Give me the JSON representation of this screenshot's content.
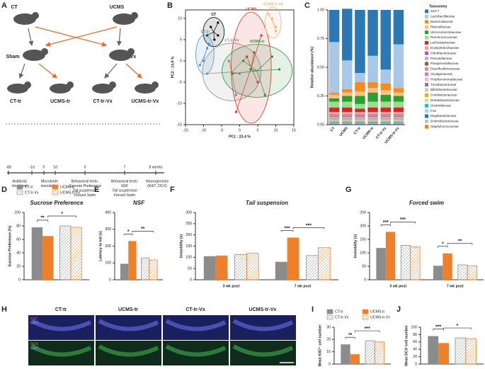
{
  "panels": [
    "A",
    "B",
    "C",
    "D",
    "E",
    "F",
    "G",
    "H",
    "I",
    "J"
  ],
  "diagram": {
    "groups": [
      "CT",
      "UCMS",
      "Sham",
      "Vx",
      "CT-tr",
      "UCMS-tr",
      "CT-tr-Vx",
      "UCMS-tr-Vx"
    ],
    "timeline": {
      "ticks": [
        "-8d",
        "-1d",
        "0",
        "1d",
        "3",
        "7",
        "8 weeks"
      ],
      "events": [
        [
          "Antibiotic",
          "treatment"
        ],
        [
          "Microbiote",
          "inoculation"
        ],
        [
          "Behavioral tests:",
          "Sucrose Preference",
          "Tail suspension",
          "Forced Swim"
        ],
        [
          "Behavioral tests:",
          "NSF",
          "Tail suspension",
          "Forced Swim"
        ],
        [
          "Neurogenesis",
          "(Ki67, DCX)"
        ]
      ]
    }
  },
  "micrographs": {
    "columns": [
      "CT-tr",
      "UCMS-tr",
      "CT-tr-Vx",
      "UCMS-tr-Vx"
    ],
    "stains": [
      [
        "Ki67",
        "DAPI"
      ],
      [
        "DCX",
        "DAPI"
      ]
    ]
  },
  "chart_data": [
    {
      "type": "scatter",
      "xlabel": "PC1 : 23.4 %",
      "ylabel": "PC2 : 14.9 %",
      "xlim": [
        -15,
        15
      ],
      "xticks": [
        -15,
        -10,
        -5,
        0,
        5,
        10,
        15
      ],
      "ylim": [
        -15,
        12
      ],
      "yticks": [
        -15,
        -10,
        -5,
        0,
        5,
        10
      ],
      "series": [
        {
          "name": "CT",
          "color": "#000000",
          "x": [
            -8,
            -6,
            -7,
            -9,
            -6
          ],
          "y": [
            8,
            9,
            5,
            6,
            6
          ]
        },
        {
          "name": "CT-tr",
          "color": "#4a90d0",
          "x": [
            -11,
            -9,
            -10,
            -8.5
          ],
          "y": [
            -1,
            3,
            0,
            4
          ]
        },
        {
          "name": "CT-tr-Vx",
          "color": "#8a8a8a",
          "x": [
            -9,
            0,
            2,
            -1,
            -3
          ],
          "y": [
            -3,
            -3,
            1,
            -8,
            0
          ]
        },
        {
          "name": "UCMS",
          "color": "#d7301f",
          "x": [
            2,
            5,
            -1,
            6,
            4
          ],
          "y": [
            1,
            -5,
            -12,
            6,
            2
          ]
        },
        {
          "name": "UCMS-tr",
          "color": "#2a8c3a",
          "x": [
            1,
            7,
            11,
            9,
            3,
            -2
          ],
          "y": [
            0,
            -8,
            -2,
            1,
            -2,
            -3
          ]
        },
        {
          "name": "UCMS-tr-Vx",
          "color": "#f2b27a",
          "x": [
            8,
            10,
            9,
            10
          ],
          "y": [
            11,
            7,
            10,
            8
          ]
        }
      ]
    },
    {
      "type": "stacked_bar",
      "ylabel": "Relative abundance (%)",
      "legend_title": "Taxonomy",
      "categories": [
        "CT",
        "UCMS",
        "CT-tr",
        "UCMS-tr",
        "CT-tr-Vx",
        "UCMS-tr-Vx"
      ],
      "ylim": [
        0,
        1
      ],
      "yticks": [
        {
          "value": 0,
          "label": "0.00"
        },
        {
          "value": 0.25,
          "label": "0.25"
        },
        {
          "value": 0.5,
          "label": "0.50"
        },
        {
          "value": 0.75,
          "label": "0.75"
        },
        {
          "value": 1,
          "label": "1.00"
        }
      ],
      "series": [
        {
          "name": "S24-7",
          "color": "#2b78b5",
          "values": [
            0.28,
            0.45,
            0.55,
            0.4,
            0.52,
            0.3
          ]
        },
        {
          "name": "Lactobacillaceae",
          "color": "#a9c8e8",
          "values": [
            0.44,
            0.25,
            0.08,
            0.23,
            0.12,
            0.38
          ]
        },
        {
          "name": "Bacteroidaceae",
          "color": "#f58b22",
          "values": [
            0.02,
            0.03,
            0.08,
            0.05,
            0.06,
            0.04
          ]
        },
        {
          "name": "Rikenellaceae",
          "color": "#fdc07e",
          "values": [
            0.03,
            0.03,
            0.04,
            0.04,
            0.04,
            0.03
          ]
        },
        {
          "name": "Verrucomicrobiaceae",
          "color": "#2ca02c",
          "values": [
            0.03,
            0.05,
            0.07,
            0.08,
            0.06,
            0.05
          ]
        },
        {
          "name": "Ruminococcaceae",
          "color": "#98df8a",
          "values": [
            0.05,
            0.05,
            0.04,
            0.05,
            0.05,
            0.05
          ]
        },
        {
          "name": "Lachnospiraceae",
          "color": "#d62728",
          "values": [
            0.04,
            0.04,
            0.03,
            0.04,
            0.04,
            0.04
          ]
        },
        {
          "name": "Erysipelotrichaceae",
          "color": "#ff9896",
          "values": [
            0.02,
            0.02,
            0.02,
            0.02,
            0.02,
            0.02
          ]
        },
        {
          "name": "Odoribacteraceae",
          "color": "#9467bd",
          "values": [
            0.006,
            0.006,
            0.006,
            0.006,
            0.006,
            0.006
          ]
        },
        {
          "name": "Prevotellaceae",
          "color": "#c5b0d5",
          "values": [
            0.006,
            0.006,
            0.006,
            0.006,
            0.006,
            0.006
          ]
        },
        {
          "name": "Paraprevotellaceae",
          "color": "#8c564b",
          "values": [
            0.006,
            0.006,
            0.006,
            0.006,
            0.006,
            0.006
          ]
        },
        {
          "name": "Desulfovibrionaceae",
          "color": "#c49c94",
          "values": [
            0.006,
            0.006,
            0.006,
            0.006,
            0.006,
            0.006
          ]
        },
        {
          "name": "Alcaligenaceae",
          "color": "#e377c2",
          "values": [
            0.006,
            0.006,
            0.006,
            0.006,
            0.006,
            0.006
          ]
        },
        {
          "name": "Porphyromonadaceae",
          "color": "#f7b6d2",
          "values": [
            0.006,
            0.006,
            0.006,
            0.006,
            0.006,
            0.006
          ]
        },
        {
          "name": "Turicibacteraceae",
          "color": "#7f7f7f",
          "values": [
            0.006,
            0.006,
            0.006,
            0.006,
            0.006,
            0.006
          ]
        },
        {
          "name": "Bifidobacteriaceae",
          "color": "#c7c7c7",
          "values": [
            0.006,
            0.006,
            0.006,
            0.006,
            0.006,
            0.006
          ]
        },
        {
          "name": "Coriobacteriaceae",
          "color": "#bcbd22",
          "values": [
            0.006,
            0.006,
            0.006,
            0.006,
            0.006,
            0.006
          ]
        },
        {
          "name": "Dehalobacteriaceae",
          "color": "#dbdb8d",
          "values": [
            0.006,
            0.006,
            0.006,
            0.006,
            0.006,
            0.006
          ]
        },
        {
          "name": "Clostridiaceae",
          "color": "#17becf",
          "values": [
            0.006,
            0.006,
            0.006,
            0.006,
            0.006,
            0.006
          ]
        },
        {
          "name": "F16",
          "color": "#9edae5",
          "values": [
            0.006,
            0.006,
            0.006,
            0.006,
            0.006,
            0.006
          ]
        },
        {
          "name": "Mogibacteriaceae",
          "color": "#1f77b4",
          "values": [
            0.006,
            0.006,
            0.006,
            0.006,
            0.006,
            0.006
          ]
        },
        {
          "name": "Enterobacteriaceae",
          "color": "#aec7e8",
          "values": [
            0.006,
            0.006,
            0.006,
            0.006,
            0.006,
            0.006
          ]
        },
        {
          "name": "Staphylococcaceae",
          "color": "#ff7f0e",
          "values": [
            0.006,
            0.006,
            0.006,
            0.006,
            0.006,
            0.006
          ]
        }
      ]
    },
    {
      "type": "bar",
      "title": "Sucrose Preference",
      "ylabel": "Sucrose Preference (%)",
      "legend": true,
      "ylim": [
        0,
        100
      ],
      "yticks": [
        0,
        20,
        40,
        60,
        80,
        100
      ],
      "series": [
        {
          "name": "CT-tr",
          "color": "#8c8c8c",
          "hatch": false,
          "values": [
            78
          ]
        },
        {
          "name": "UCMS-tr",
          "color": "#f07f2a",
          "hatch": false,
          "values": [
            65
          ]
        },
        {
          "name": "CT-tr-Vx",
          "color": "#8c8c8c",
          "hatch": true,
          "values": [
            80
          ]
        },
        {
          "name": "UCMS-tr-Vx",
          "color": "#f07f2a",
          "hatch": true,
          "values": [
            78
          ]
        }
      ],
      "annotations": [
        {
          "text": "**",
          "group": 0,
          "from": 0,
          "to": 1
        },
        {
          "text": "*",
          "group": 0,
          "from": 1,
          "to": 3
        }
      ]
    },
    {
      "type": "bar",
      "title": "NSF",
      "ylabel": "Latency to eat (s)",
      "legend": false,
      "ylim": [
        0,
        400
      ],
      "yticks": [
        0,
        100,
        200,
        300,
        400
      ],
      "series": [
        {
          "name": "CT-tr",
          "color": "#8c8c8c",
          "hatch": false,
          "values": [
            95
          ]
        },
        {
          "name": "UCMS-tr",
          "color": "#f07f2a",
          "hatch": false,
          "values": [
            230
          ]
        },
        {
          "name": "CT-tr-Vx",
          "color": "#8c8c8c",
          "hatch": true,
          "values": [
            130
          ]
        },
        {
          "name": "UCMS-tr-Vx",
          "color": "#f07f2a",
          "hatch": true,
          "values": [
            118
          ]
        }
      ],
      "annotations": [
        {
          "text": "*",
          "group": 0,
          "from": 0,
          "to": 1
        },
        {
          "text": "**",
          "group": 0,
          "from": 1,
          "to": 3
        }
      ]
    },
    {
      "type": "bar",
      "title": "Tail suspension",
      "ylabel": "Immobility (s)",
      "legend": false,
      "categories": [
        "3 wk post",
        "7 wk post"
      ],
      "ylim": [
        0,
        300
      ],
      "yticks": [
        0,
        50,
        100,
        150,
        200,
        250,
        300
      ],
      "series": [
        {
          "name": "CT-tr",
          "color": "#8c8c8c",
          "hatch": false,
          "values": [
            105,
            80
          ]
        },
        {
          "name": "UCMS-tr",
          "color": "#f07f2a",
          "hatch": false,
          "values": [
            108,
            188
          ]
        },
        {
          "name": "CT-tr-Vx",
          "color": "#8c8c8c",
          "hatch": true,
          "values": [
            112,
            108
          ]
        },
        {
          "name": "UCMS-tr-Vx",
          "color": "#f07f2a",
          "hatch": true,
          "values": [
            118,
            143
          ]
        }
      ],
      "annotations": [
        {
          "text": "***",
          "group": 1,
          "from": 0,
          "to": 1
        },
        {
          "text": "***",
          "group": 1,
          "from": 1,
          "to": 3
        }
      ]
    },
    {
      "type": "bar",
      "title": "Forced swim",
      "ylabel": "Immobility (s)",
      "legend": false,
      "categories": [
        "3 wk post",
        "7 wk post"
      ],
      "ylim": [
        0,
        250
      ],
      "yticks": [
        0,
        50,
        100,
        150,
        200,
        250
      ],
      "series": [
        {
          "name": "CT-tr",
          "color": "#8c8c8c",
          "hatch": false,
          "values": [
            118,
            52
          ]
        },
        {
          "name": "UCMS-tr",
          "color": "#f07f2a",
          "hatch": false,
          "values": [
            178,
            98
          ]
        },
        {
          "name": "CT-tr-Vx",
          "color": "#8c8c8c",
          "hatch": true,
          "values": [
            128,
            55
          ]
        },
        {
          "name": "UCMS-tr-Vx",
          "color": "#f07f2a",
          "hatch": true,
          "values": [
            122,
            52
          ]
        }
      ],
      "annotations": [
        {
          "text": "***",
          "group": 0,
          "from": 0,
          "to": 1
        },
        {
          "text": "***",
          "group": 0,
          "from": 1,
          "to": 3
        },
        {
          "text": "*",
          "group": 1,
          "from": 0,
          "to": 1
        },
        {
          "text": "**",
          "group": 1,
          "from": 1,
          "to": 3
        }
      ]
    },
    {
      "type": "bar",
      "ylabel": "Mean Ki67⁺ cell number",
      "legend": true,
      "ylim": [
        0,
        30
      ],
      "yticks": [
        0,
        10,
        20,
        30
      ],
      "series": [
        {
          "name": "CT-tr",
          "color": "#8c8c8c",
          "hatch": false,
          "values": [
            16
          ]
        },
        {
          "name": "UCMS-tr",
          "color": "#f07f2a",
          "hatch": false,
          "values": [
            8
          ]
        },
        {
          "name": "CT-tr-Vx",
          "color": "#8c8c8c",
          "hatch": true,
          "values": [
            19
          ]
        },
        {
          "name": "UCMS-tr-Vx",
          "color": "#f07f2a",
          "hatch": true,
          "values": [
            18
          ]
        }
      ],
      "annotations": [
        {
          "text": "**",
          "group": 0,
          "from": 0,
          "to": 1
        },
        {
          "text": "***",
          "group": 0,
          "from": 1,
          "to": 3
        }
      ]
    },
    {
      "type": "bar",
      "ylabel": "Mean DCX⁺cell number",
      "legend": false,
      "ylim": [
        0,
        100
      ],
      "yticks": [
        0,
        20,
        40,
        60,
        80,
        100
      ],
      "series": [
        {
          "name": "CT-tr",
          "color": "#8c8c8c",
          "hatch": false,
          "values": [
            76
          ]
        },
        {
          "name": "UCMS-tr",
          "color": "#f07f2a",
          "hatch": false,
          "values": [
            57
          ]
        },
        {
          "name": "CT-tr-Vx",
          "color": "#8c8c8c",
          "hatch": true,
          "values": [
            71
          ]
        },
        {
          "name": "UCMS-tr-Vx",
          "color": "#f07f2a",
          "hatch": true,
          "values": [
            69
          ]
        }
      ],
      "annotations": [
        {
          "text": "***",
          "group": 0,
          "from": 0,
          "to": 1
        },
        {
          "text": "*",
          "group": 0,
          "from": 1,
          "to": 3
        }
      ]
    }
  ]
}
